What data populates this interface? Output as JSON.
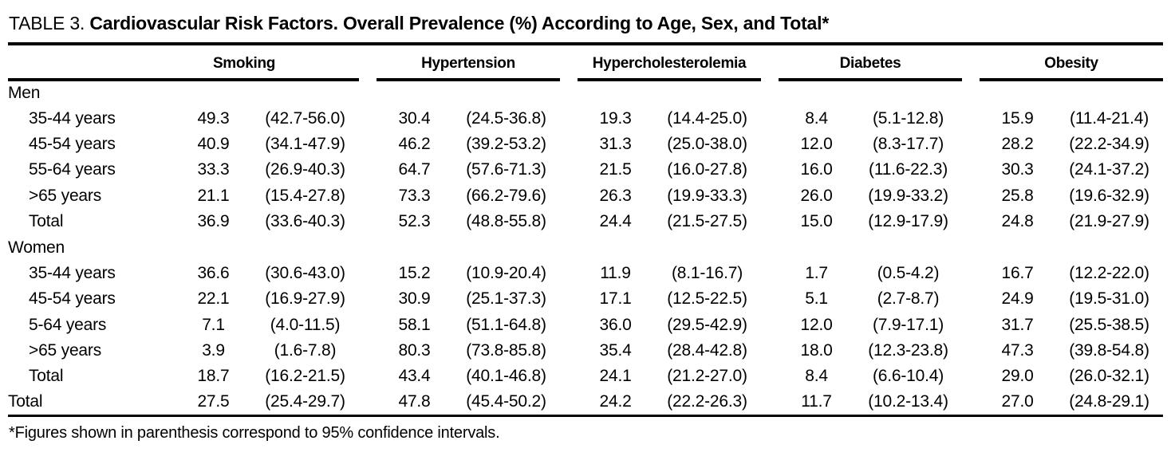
{
  "title": {
    "label": "TABLE 3.",
    "text": "Cardiovascular Risk Factors. Overall Prevalence (%) According to Age, Sex, and Total*"
  },
  "columns": [
    "Smoking",
    "Hypertension",
    "Hypercholesterolemia",
    "Diabetes",
    "Obesity"
  ],
  "rows": [
    {
      "label": "Men",
      "indent": false,
      "values": null
    },
    {
      "label": "35-44 years",
      "indent": true,
      "values": [
        "49.3",
        "(42.7-56.0)",
        "30.4",
        "(24.5-36.8)",
        "19.3",
        "(14.4-25.0)",
        "8.4",
        "(5.1-12.8)",
        "15.9",
        "(11.4-21.4)"
      ]
    },
    {
      "label": "45-54 years",
      "indent": true,
      "values": [
        "40.9",
        "(34.1-47.9)",
        "46.2",
        "(39.2-53.2)",
        "31.3",
        "(25.0-38.0)",
        "12.0",
        "(8.3-17.7)",
        "28.2",
        "(22.2-34.9)"
      ]
    },
    {
      "label": "55-64 years",
      "indent": true,
      "values": [
        "33.3",
        "(26.9-40.3)",
        "64.7",
        "(57.6-71.3)",
        "21.5",
        "(16.0-27.8)",
        "16.0",
        "(11.6-22.3)",
        "30.3",
        "(24.1-37.2)"
      ]
    },
    {
      "label": ">65 years",
      "indent": true,
      "values": [
        "21.1",
        "(15.4-27.8)",
        "73.3",
        "(66.2-79.6)",
        "26.3",
        "(19.9-33.3)",
        "26.0",
        "(19.9-33.2)",
        "25.8",
        "(19.6-32.9)"
      ]
    },
    {
      "label": "Total",
      "indent": true,
      "values": [
        "36.9",
        "(33.6-40.3)",
        "52.3",
        "(48.8-55.8)",
        "24.4",
        "(21.5-27.5)",
        "15.0",
        "(12.9-17.9)",
        "24.8",
        "(21.9-27.9)"
      ]
    },
    {
      "label": "Women",
      "indent": false,
      "values": null
    },
    {
      "label": "35-44 years",
      "indent": true,
      "values": [
        "36.6",
        "(30.6-43.0)",
        "15.2",
        "(10.9-20.4)",
        "11.9",
        "(8.1-16.7)",
        "1.7",
        "(0.5-4.2)",
        "16.7",
        "(12.2-22.0)"
      ]
    },
    {
      "label": "45-54 years",
      "indent": true,
      "values": [
        "22.1",
        "(16.9-27.9)",
        "30.9",
        "(25.1-37.3)",
        "17.1",
        "(12.5-22.5)",
        "5.1",
        "(2.7-8.7)",
        "24.9",
        "(19.5-31.0)"
      ]
    },
    {
      "label": "5-64 years",
      "indent": true,
      "values": [
        "7.1",
        "(4.0-11.5)",
        "58.1",
        "(51.1-64.8)",
        "36.0",
        "(29.5-42.9)",
        "12.0",
        "(7.9-17.1)",
        "31.7",
        "(25.5-38.5)"
      ]
    },
    {
      "label": ">65 years",
      "indent": true,
      "values": [
        "3.9",
        "(1.6-7.8)",
        "80.3",
        "(73.8-85.8)",
        "35.4",
        "(28.4-42.8)",
        "18.0",
        "(12.3-23.8)",
        "47.3",
        "(39.8-54.8)"
      ]
    },
    {
      "label": "Total",
      "indent": true,
      "values": [
        "18.7",
        "(16.2-21.5)",
        "43.4",
        "(40.1-46.8)",
        "24.1",
        "(21.2-27.0)",
        "8.4",
        "(6.6-10.4)",
        "29.0",
        "(26.0-32.1)"
      ]
    },
    {
      "label": "Total",
      "indent": false,
      "values": [
        "27.5",
        "(25.4-29.7)",
        "47.8",
        "(45.4-50.2)",
        "24.2",
        "(22.2-26.3)",
        "11.7",
        "(10.2-13.4)",
        "27.0",
        "(24.8-29.1)"
      ]
    }
  ],
  "footnote": "*Figures shown in parenthesis correspond to 95% confidence intervals."
}
